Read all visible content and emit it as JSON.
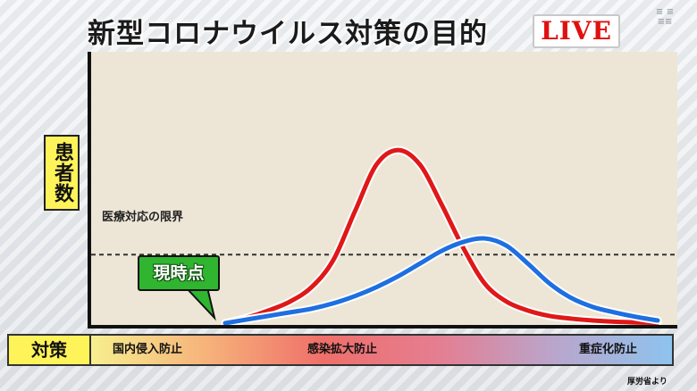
{
  "title": "新型コロナウイルス対策の目的",
  "live_badge": "LIVE",
  "channel_logo": "テレ朝NEWS",
  "chart_data": {
    "type": "line",
    "title": "新型コロナウイルス対策の目的",
    "ylabel": "患者数",
    "xlabel": "",
    "x": [
      0,
      1,
      2,
      3,
      4,
      5,
      6,
      7,
      8,
      9,
      10,
      11,
      12,
      13,
      14,
      15,
      16,
      17,
      18,
      19,
      20
    ],
    "xlim": [
      0,
      20
    ],
    "ylim": [
      0,
      100
    ],
    "grid": false,
    "legend": "none",
    "series": [
      {
        "color": "#e01818",
        "values": [
          0,
          3,
          7,
          12,
          20,
          35,
          62,
          88,
          96,
          88,
          66,
          42,
          22,
          12,
          7,
          4,
          2.5,
          1.5,
          0.8,
          0.4,
          0.2
        ]
      },
      {
        "color": "#1e6fe0",
        "values": [
          0,
          2,
          4,
          6,
          8,
          11,
          15,
          20,
          26,
          33,
          40,
          45,
          47,
          43,
          33,
          22,
          14,
          9,
          6,
          3.5,
          1.5
        ]
      }
    ],
    "annotations": [
      {
        "type": "hline",
        "y": 38,
        "label": "医療対応の限界",
        "style": "dashed"
      },
      {
        "type": "callout",
        "x": 0,
        "y": 0,
        "label": "現時点",
        "color": "#2fb52f"
      }
    ],
    "x_bands": {
      "label": "対策",
      "items": [
        {
          "label": "国内侵入防止",
          "position": "start"
        },
        {
          "label": "感染拡大防止",
          "position": "middle"
        },
        {
          "label": "重症化防止",
          "position": "end"
        }
      ]
    }
  },
  "source_note": "厚労省より"
}
